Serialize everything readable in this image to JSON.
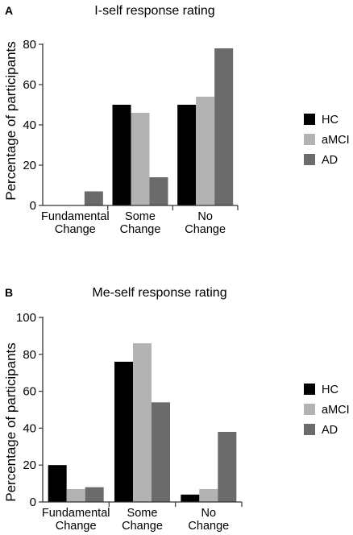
{
  "chart_data": [
    {
      "panel": "A",
      "type": "bar",
      "title": "I-self response rating",
      "xlabel": "",
      "ylabel": "Percentage of participants",
      "ylim": [
        0,
        80
      ],
      "yticks": [
        0,
        20,
        40,
        60,
        80
      ],
      "categories": [
        "Fundamental Change",
        "Some Change",
        "No Change"
      ],
      "series": [
        {
          "name": "HC",
          "color": "#000000",
          "values": [
            0,
            50,
            50
          ]
        },
        {
          "name": "aMCI",
          "color": "#b3b3b3",
          "values": [
            0,
            46,
            54
          ]
        },
        {
          "name": "AD",
          "color": "#6b6b6b",
          "values": [
            7,
            14,
            78
          ]
        }
      ],
      "legend": "right",
      "grid": false
    },
    {
      "panel": "B",
      "type": "bar",
      "title": "Me-self response rating",
      "xlabel": "",
      "ylabel": "Percentage of participants",
      "ylim": [
        0,
        100
      ],
      "yticks": [
        0,
        20,
        40,
        60,
        80,
        100
      ],
      "categories": [
        "Fundamental Change",
        "Some Change",
        "No Change"
      ],
      "series": [
        {
          "name": "HC",
          "color": "#000000",
          "values": [
            20,
            76,
            4
          ]
        },
        {
          "name": "aMCI",
          "color": "#b3b3b3",
          "values": [
            7,
            86,
            7
          ]
        },
        {
          "name": "AD",
          "color": "#6b6b6b",
          "values": [
            8,
            54,
            38
          ]
        }
      ],
      "legend": "right",
      "grid": false
    }
  ]
}
